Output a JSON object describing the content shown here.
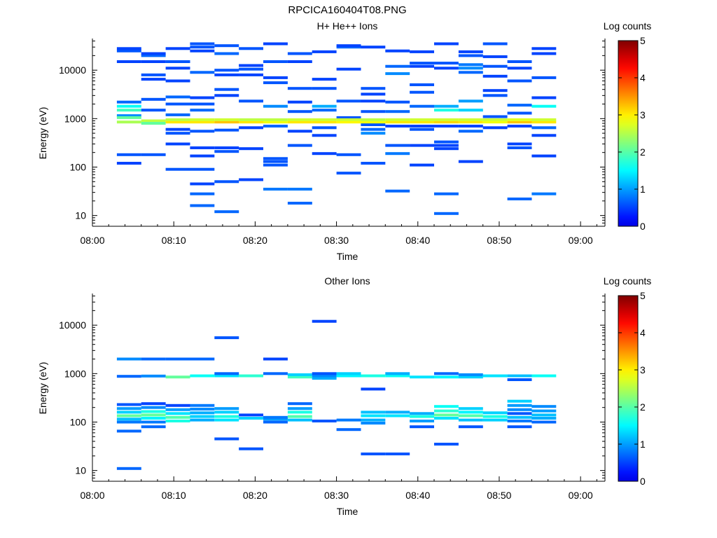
{
  "figure": {
    "title": "RPCICA160404T08.PNG"
  },
  "colorbar": {
    "label": "Log counts",
    "ticks": [
      "0",
      "1",
      "2",
      "3",
      "4",
      "5"
    ],
    "range": [
      0,
      5
    ]
  },
  "chart_data": [
    {
      "type": "heatmap",
      "title": "H+ He++ Ions",
      "xlabel": "Time",
      "ylabel": "Energy (eV)",
      "x_ticks": [
        "08:00",
        "08:10",
        "08:20",
        "08:30",
        "08:40",
        "08:50",
        "09:00"
      ],
      "xlim_minutes": [
        0,
        63
      ],
      "y_ticks": [
        "10",
        "100",
        "1000",
        "10000"
      ],
      "ylim_eV": [
        6,
        45000
      ],
      "y_scale": "log",
      "colorbar_label": "Log counts",
      "columns_start_minutes": [
        3,
        6,
        9,
        12,
        15,
        18,
        21,
        24,
        27,
        30,
        33,
        36,
        39,
        42,
        45,
        48,
        51,
        54,
        57,
        60
      ],
      "column_width_minutes": 3,
      "bins": [
        {
          "column": 0,
          "energies": [
            180,
            120,
            1150,
            1050,
            850,
            1500,
            1800,
            2200,
            15000,
            25000,
            28000
          ],
          "values": [
            0.5,
            0.4,
            0.8,
            2.0,
            2.4,
            1.8,
            1.5,
            0.6,
            0.4,
            0.5,
            0.4
          ]
        },
        {
          "column": 1,
          "energies": [
            180,
            900,
            800,
            1500,
            2500,
            6500,
            8000,
            15000,
            20000,
            22000
          ],
          "values": [
            0.5,
            2.5,
            2.0,
            0.5,
            0.5,
            0.4,
            0.5,
            0.4,
            0.6,
            0.4
          ]
        },
        {
          "column": 2,
          "energies": [
            90,
            300,
            500,
            600,
            850,
            950,
            1200,
            2000,
            2800,
            6000,
            11000,
            15000,
            28000
          ],
          "values": [
            0.5,
            0.4,
            0.5,
            0.4,
            3.0,
            2.5,
            0.6,
            0.5,
            0.6,
            0.4,
            0.4,
            0.5,
            0.4
          ]
        },
        {
          "column": 3,
          "energies": [
            16,
            28,
            45,
            90,
            170,
            250,
            550,
            850,
            950,
            1500,
            2000,
            2700,
            9000,
            25000,
            30000,
            35000
          ],
          "values": [
            0.6,
            0.6,
            0.4,
            0.5,
            0.4,
            0.4,
            0.5,
            3.0,
            2.6,
            0.6,
            0.5,
            0.4,
            0.6,
            0.4,
            0.5,
            0.5
          ]
        },
        {
          "column": 4,
          "energies": [
            12,
            50,
            210,
            250,
            580,
            850,
            950,
            3000,
            4000,
            8000,
            10000,
            22000,
            32000
          ],
          "values": [
            0.6,
            0.5,
            0.5,
            0.4,
            0.5,
            3.2,
            2.6,
            0.4,
            0.5,
            0.4,
            0.5,
            0.6,
            0.5
          ]
        },
        {
          "column": 5,
          "energies": [
            55,
            240,
            650,
            850,
            950,
            2300,
            8000,
            10500,
            12500,
            28000
          ],
          "values": [
            0.4,
            0.4,
            0.4,
            3.0,
            2.5,
            0.5,
            0.4,
            0.5,
            0.4,
            0.5
          ]
        },
        {
          "column": 6,
          "energies": [
            35,
            110,
            130,
            150,
            700,
            850,
            950,
            1800,
            5500,
            7000,
            15000,
            35000
          ],
          "values": [
            0.7,
            0.5,
            0.5,
            0.5,
            0.6,
            2.8,
            2.5,
            0.8,
            0.5,
            0.4,
            0.5,
            0.4
          ]
        },
        {
          "column": 7,
          "energies": [
            18,
            35,
            280,
            550,
            850,
            950,
            1400,
            2200,
            4200,
            15000,
            22000
          ],
          "values": [
            0.6,
            0.7,
            0.5,
            0.4,
            3.0,
            2.6,
            0.5,
            0.4,
            0.5,
            0.4,
            0.5
          ]
        },
        {
          "column": 8,
          "energies": [
            190,
            450,
            650,
            850,
            950,
            1500,
            1800,
            4200,
            6500,
            24000
          ],
          "values": [
            0.4,
            0.4,
            0.5,
            3.0,
            2.6,
            0.6,
            1.0,
            0.5,
            0.4,
            0.4
          ]
        },
        {
          "column": 9,
          "energies": [
            75,
            180,
            1050,
            850,
            950,
            2300,
            10500,
            30000,
            32000
          ],
          "values": [
            0.5,
            0.5,
            0.5,
            2.9,
            2.6,
            0.5,
            0.4,
            0.6,
            0.4
          ]
        },
        {
          "column": 10,
          "energies": [
            120,
            500,
            600,
            750,
            850,
            950,
            1400,
            2300,
            3200,
            4200,
            30000
          ],
          "values": [
            0.5,
            0.8,
            0.6,
            0.5,
            2.8,
            2.5,
            0.5,
            0.4,
            0.4,
            0.5,
            0.4
          ]
        },
        {
          "column": 11,
          "energies": [
            32,
            190,
            280,
            700,
            850,
            950,
            1400,
            2200,
            8500,
            12000,
            25000
          ],
          "values": [
            0.6,
            0.7,
            0.5,
            0.4,
            3.0,
            2.6,
            0.6,
            0.5,
            0.8,
            0.6,
            0.4
          ]
        },
        {
          "column": 12,
          "energies": [
            110,
            280,
            600,
            700,
            850,
            950,
            1800,
            3500,
            5000,
            12000,
            14000,
            24000
          ],
          "values": [
            0.4,
            0.4,
            0.5,
            0.4,
            3.0,
            2.6,
            0.6,
            0.5,
            0.5,
            0.4,
            0.5,
            0.4
          ]
        },
        {
          "column": 13,
          "energies": [
            11,
            28,
            240,
            280,
            330,
            700,
            850,
            950,
            1500,
            1800,
            11000,
            14000,
            35000
          ],
          "values": [
            0.6,
            0.6,
            0.4,
            0.4,
            0.5,
            0.4,
            3.1,
            2.6,
            1.6,
            1.0,
            0.4,
            0.5,
            0.4
          ]
        },
        {
          "column": 14,
          "energies": [
            130,
            550,
            700,
            850,
            950,
            1500,
            2300,
            9000,
            11000,
            13000,
            20000,
            24000
          ],
          "values": [
            0.4,
            0.6,
            0.4,
            3.0,
            2.6,
            1.2,
            0.9,
            0.6,
            0.8,
            0.7,
            0.5,
            0.4
          ]
        },
        {
          "column": 15,
          "energies": [
            650,
            850,
            950,
            1100,
            3000,
            3800,
            7500,
            12000,
            19000,
            35000
          ],
          "values": [
            0.4,
            2.8,
            2.6,
            0.5,
            0.5,
            0.4,
            0.4,
            0.5,
            0.4,
            0.5
          ]
        },
        {
          "column": 16,
          "energies": [
            22,
            250,
            300,
            700,
            850,
            950,
            1300,
            1900,
            6000,
            11000,
            15000
          ],
          "values": [
            0.6,
            0.5,
            0.4,
            0.4,
            3.2,
            2.7,
            0.5,
            0.6,
            0.5,
            0.4,
            0.5
          ]
        },
        {
          "column": 17,
          "energies": [
            28,
            170,
            450,
            650,
            850,
            950,
            1800,
            2700,
            7000,
            22000,
            28000
          ],
          "values": [
            0.7,
            0.4,
            0.4,
            0.6,
            3.0,
            2.6,
            1.5,
            0.4,
            0.5,
            0.4,
            0.4
          ]
        }
      ]
    },
    {
      "type": "heatmap",
      "title": "Other Ions",
      "xlabel": "Time",
      "ylabel": "Energy (eV)",
      "x_ticks": [
        "08:00",
        "08:10",
        "08:20",
        "08:30",
        "08:40",
        "08:50",
        "09:00"
      ],
      "xlim_minutes": [
        0,
        63
      ],
      "y_ticks": [
        "10",
        "100",
        "1000",
        "10000"
      ],
      "ylim_eV": [
        6,
        45000
      ],
      "y_scale": "log",
      "colorbar_label": "Log counts",
      "columns_start_minutes": [
        3,
        6,
        9,
        12,
        15,
        18,
        21,
        24,
        27,
        30,
        33,
        36,
        39,
        42,
        45,
        48,
        51,
        54,
        57,
        60
      ],
      "column_width_minutes": 3,
      "bins": [
        {
          "column": 0,
          "energies": [
            11,
            65,
            100,
            115,
            135,
            160,
            190,
            230,
            880,
            2000
          ],
          "values": [
            0.6,
            0.6,
            0.7,
            1.1,
            2.0,
            1.2,
            0.9,
            0.5,
            0.6,
            0.8
          ]
        },
        {
          "column": 1,
          "energies": [
            80,
            100,
            120,
            140,
            165,
            200,
            240,
            890,
            2000
          ],
          "values": [
            0.6,
            0.7,
            1.4,
            2.0,
            1.6,
            0.8,
            0.4,
            0.8,
            0.6
          ]
        },
        {
          "column": 2,
          "energies": [
            105,
            125,
            150,
            180,
            220,
            850,
            2000
          ],
          "values": [
            1.6,
            1.9,
            1.3,
            0.9,
            0.4,
            2.0,
            0.6
          ]
        },
        {
          "column": 3,
          "energies": [
            110,
            130,
            155,
            185,
            220,
            900,
            2000
          ],
          "values": [
            1.0,
            1.2,
            1.0,
            0.8,
            0.7,
            1.5,
            0.6
          ]
        },
        {
          "column": 4,
          "energies": [
            45,
            110,
            130,
            160,
            190,
            900,
            1000,
            5500
          ],
          "values": [
            0.5,
            1.3,
            1.6,
            1.2,
            0.9,
            1.3,
            0.6,
            0.5
          ]
        },
        {
          "column": 5,
          "energies": [
            28,
            120,
            140,
            900
          ],
          "values": [
            0.5,
            1.2,
            0.4,
            1.7
          ]
        },
        {
          "column": 6,
          "energies": [
            100,
            115,
            125,
            1000,
            2000
          ],
          "values": [
            0.6,
            0.9,
            0.7,
            0.6,
            0.4
          ]
        },
        {
          "column": 7,
          "energies": [
            110,
            130,
            160,
            190,
            240,
            850,
            950
          ],
          "values": [
            1.1,
            1.9,
            1.6,
            0.9,
            0.6,
            1.8,
            1.2
          ]
        },
        {
          "column": 8,
          "energies": [
            105,
            800,
            900,
            1000,
            12000
          ],
          "values": [
            0.5,
            1.0,
            0.8,
            0.5,
            0.4
          ]
        },
        {
          "column": 9,
          "energies": [
            70,
            110,
            900,
            1000
          ],
          "values": [
            0.6,
            0.7,
            1.4,
            1.2
          ]
        },
        {
          "column": 10,
          "energies": [
            22,
            95,
            110,
            135,
            160,
            480,
            900
          ],
          "values": [
            0.5,
            0.8,
            1.0,
            1.3,
            1.1,
            0.4,
            1.6
          ]
        },
        {
          "column": 11,
          "energies": [
            22,
            135,
            160,
            900,
            1000
          ],
          "values": [
            0.5,
            1.3,
            1.0,
            1.5,
            1.0
          ]
        },
        {
          "column": 12,
          "energies": [
            80,
            105,
            130,
            150,
            850
          ],
          "values": [
            0.5,
            0.9,
            1.6,
            1.0,
            1.3
          ]
        },
        {
          "column": 13,
          "energies": [
            35,
            120,
            140,
            170,
            210,
            850,
            1000
          ],
          "values": [
            0.5,
            1.3,
            2.0,
            1.7,
            1.5,
            1.4,
            0.6
          ]
        },
        {
          "column": 14,
          "energies": [
            80,
            110,
            135,
            160,
            190,
            850,
            950
          ],
          "values": [
            0.5,
            1.1,
            1.9,
            1.4,
            1.2,
            1.2,
            0.8
          ]
        },
        {
          "column": 15,
          "energies": [
            110,
            130,
            155,
            900
          ],
          "values": [
            1.2,
            1.6,
            1.2,
            1.3
          ]
        },
        {
          "column": 16,
          "energies": [
            80,
            105,
            125,
            150,
            180,
            220,
            270,
            750,
            900
          ],
          "values": [
            0.5,
            0.7,
            1.1,
            0.5,
            0.8,
            0.9,
            1.2,
            0.5,
            1.1
          ]
        },
        {
          "column": 17,
          "energies": [
            100,
            120,
            140,
            170,
            210,
            900
          ],
          "values": [
            0.6,
            1.0,
            1.1,
            0.9,
            0.8,
            1.5
          ]
        }
      ]
    }
  ]
}
